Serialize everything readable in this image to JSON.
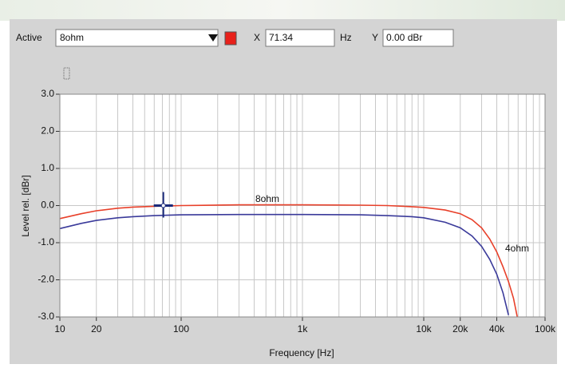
{
  "toolbar": {
    "active_label": "Active",
    "active_value": "8ohm",
    "x_label": "X",
    "x_unit": "Hz",
    "y_label": "Y"
  },
  "chart_data": {
    "type": "line",
    "xlabel": "Frequency [Hz]",
    "ylabel": "Level rel. [dBr]",
    "log_x": true,
    "grid": true,
    "xlim": [
      10,
      100000
    ],
    "ylim": [
      -3,
      3
    ],
    "xticks": [
      10,
      20,
      100,
      {
        "value": 1000,
        "label": "1k"
      },
      {
        "value": 10000,
        "label": "10k"
      },
      {
        "value": 20000,
        "label": "20k"
      },
      {
        "value": 40000,
        "label": "40k"
      },
      {
        "value": 100000,
        "label": "100k"
      }
    ],
    "yticks": [
      {
        "value": 3,
        "label": "3.0"
      },
      {
        "value": 2,
        "label": "2.0"
      },
      {
        "value": 1,
        "label": "1.0"
      },
      {
        "value": 0,
        "label": "0.0"
      },
      {
        "value": -1,
        "label": "-1.0"
      },
      {
        "value": -2,
        "label": "-2.0"
      },
      {
        "value": -3,
        "label": "-3.0"
      }
    ],
    "xgrid": [
      10,
      20,
      30,
      40,
      50,
      60,
      70,
      80,
      90,
      100,
      200,
      300,
      400,
      500,
      600,
      700,
      800,
      900,
      1000,
      2000,
      3000,
      4000,
      5000,
      6000,
      7000,
      8000,
      9000,
      10000,
      20000,
      30000,
      40000,
      50000,
      60000,
      70000,
      80000,
      90000,
      100000
    ],
    "x": [
      10,
      15,
      20,
      30,
      40,
      60,
      100,
      300,
      1000,
      3000,
      5000,
      8000,
      10000,
      15000,
      20000,
      25000,
      30000,
      35000,
      40000,
      45000,
      50000,
      55000,
      59000
    ],
    "series": [
      {
        "name": "8ohm",
        "color": "#e8402a",
        "values": [
          -0.35,
          -0.22,
          -0.14,
          -0.07,
          -0.04,
          -0.02,
          0,
          0.02,
          0.02,
          0.01,
          0,
          -0.03,
          -0.05,
          -0.12,
          -0.22,
          -0.38,
          -0.6,
          -0.9,
          -1.25,
          -1.65,
          -2.05,
          -2.5,
          -3
        ]
      },
      {
        "name": "4ohm",
        "color": "#3a3a9a",
        "values": [
          -0.62,
          -0.48,
          -0.4,
          -0.33,
          -0.3,
          -0.27,
          -0.25,
          -0.24,
          -0.24,
          -0.25,
          -0.27,
          -0.3,
          -0.33,
          -0.45,
          -0.6,
          -0.82,
          -1.1,
          -1.45,
          -1.85,
          -2.35,
          -2.95,
          null,
          null
        ]
      }
    ],
    "cursor": {
      "x": 71.34,
      "y": {
        "value": 0,
        "label": "0.00 dBr"
      }
    }
  }
}
